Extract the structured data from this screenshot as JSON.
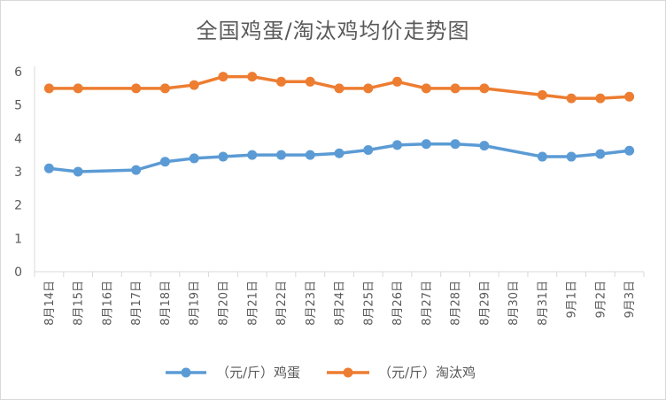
{
  "chart_data": {
    "type": "line",
    "title": "全国鸡蛋/淘汰鸡均价走势图",
    "categories": [
      "8月14日",
      "8月15日",
      "8月16日",
      "8月17日",
      "8月18日",
      "8月19日",
      "8月20日",
      "8月21日",
      "8月22日",
      "8月23日",
      "8月24日",
      "8月25日",
      "8月26日",
      "8月27日",
      "8月28日",
      "8月29日",
      "8月30日",
      "8月31日",
      "9月1日",
      "9月2日",
      "9月3日"
    ],
    "series": [
      {
        "name": "（元/斤）鸡蛋",
        "color": "#5b9bd5",
        "values": [
          3.1,
          3.0,
          null,
          3.05,
          3.3,
          3.4,
          3.45,
          3.5,
          3.5,
          3.5,
          3.55,
          3.65,
          3.8,
          3.83,
          3.83,
          3.78,
          null,
          3.45,
          3.45,
          3.53,
          3.63
        ]
      },
      {
        "name": "（元/斤）淘汰鸡",
        "color": "#ed7d31",
        "values": [
          5.5,
          5.5,
          null,
          5.5,
          5.5,
          5.6,
          5.85,
          5.85,
          5.7,
          5.7,
          5.5,
          5.5,
          5.7,
          5.5,
          5.5,
          5.5,
          null,
          5.3,
          5.2,
          5.2,
          5.25
        ]
      }
    ],
    "ylim": [
      0,
      6
    ],
    "yticks": [
      "0",
      "1",
      "2",
      "3",
      "4",
      "5",
      "6"
    ],
    "xlabel": "",
    "ylabel": "",
    "grid": false,
    "legend_position": "bottom"
  }
}
